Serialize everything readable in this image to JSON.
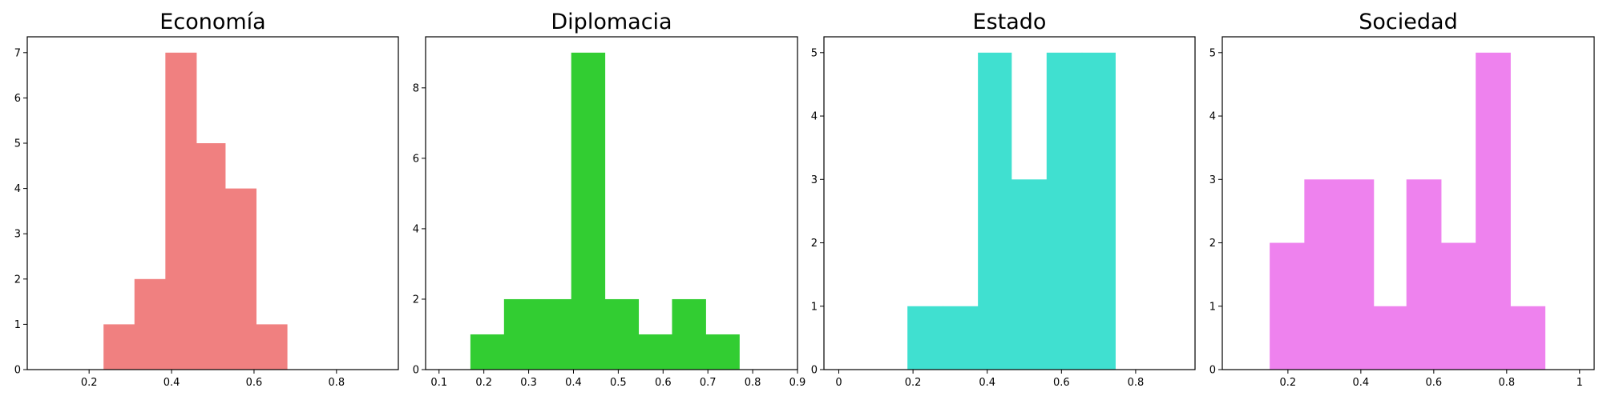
{
  "chart_data": [
    {
      "type": "bar",
      "title": "Economía",
      "color": "#f08080",
      "xlim": [
        0.05,
        0.95
      ],
      "ylim": [
        0,
        7.35
      ],
      "xticks": [
        0.2,
        0.4,
        0.6,
        0.8
      ],
      "yticks": [
        0,
        1,
        2,
        3,
        4,
        5,
        6,
        7
      ],
      "bins": [
        {
          "x0": 0.235,
          "x1": 0.31,
          "count": 1
        },
        {
          "x0": 0.31,
          "x1": 0.385,
          "count": 2
        },
        {
          "x0": 0.385,
          "x1": 0.46,
          "count": 7
        },
        {
          "x0": 0.46,
          "x1": 0.53,
          "count": 5
        },
        {
          "x0": 0.53,
          "x1": 0.605,
          "count": 4
        },
        {
          "x0": 0.605,
          "x1": 0.68,
          "count": 1
        }
      ],
      "xlabel": "",
      "ylabel": ""
    },
    {
      "type": "bar",
      "title": "Diplomacia",
      "color": "#32cd32",
      "xlim": [
        0.07,
        0.9
      ],
      "ylim": [
        0,
        9.45
      ],
      "xticks": [
        0.1,
        0.2,
        0.3,
        0.4,
        0.5,
        0.6,
        0.7,
        0.8,
        0.9
      ],
      "yticks": [
        0,
        2,
        4,
        6,
        8
      ],
      "bins": [
        {
          "x0": 0.17,
          "x1": 0.245,
          "count": 1
        },
        {
          "x0": 0.245,
          "x1": 0.32,
          "count": 2
        },
        {
          "x0": 0.32,
          "x1": 0.395,
          "count": 2
        },
        {
          "x0": 0.395,
          "x1": 0.47,
          "count": 9
        },
        {
          "x0": 0.47,
          "x1": 0.545,
          "count": 2
        },
        {
          "x0": 0.545,
          "x1": 0.62,
          "count": 1
        },
        {
          "x0": 0.62,
          "x1": 0.695,
          "count": 2
        },
        {
          "x0": 0.695,
          "x1": 0.77,
          "count": 1
        }
      ],
      "xlabel": "",
      "ylabel": ""
    },
    {
      "type": "bar",
      "title": "Estado",
      "color": "#40e0d0",
      "xlim": [
        -0.04,
        0.96
      ],
      "ylim": [
        0,
        5.25
      ],
      "xticks": [
        0.0,
        0.2,
        0.4,
        0.6,
        0.8
      ],
      "yticks": [
        0,
        1,
        2,
        3,
        4,
        5
      ],
      "bins": [
        {
          "x0": 0.185,
          "x1": 0.28,
          "count": 1
        },
        {
          "x0": 0.28,
          "x1": 0.375,
          "count": 1
        },
        {
          "x0": 0.375,
          "x1": 0.465,
          "count": 5
        },
        {
          "x0": 0.465,
          "x1": 0.56,
          "count": 3
        },
        {
          "x0": 0.56,
          "x1": 0.655,
          "count": 5
        },
        {
          "x0": 0.655,
          "x1": 0.745,
          "count": 5
        }
      ],
      "xlabel": "",
      "ylabel": ""
    },
    {
      "type": "bar",
      "title": "Sociedad",
      "color": "#ee82ee",
      "xlim": [
        0.02,
        1.04
      ],
      "ylim": [
        0,
        5.25
      ],
      "xticks": [
        0.2,
        0.4,
        0.6,
        0.8,
        1.0
      ],
      "yticks": [
        0,
        1,
        2,
        3,
        4,
        5
      ],
      "bins": [
        {
          "x0": 0.15,
          "x1": 0.245,
          "count": 2
        },
        {
          "x0": 0.245,
          "x1": 0.34,
          "count": 3
        },
        {
          "x0": 0.34,
          "x1": 0.435,
          "count": 3
        },
        {
          "x0": 0.435,
          "x1": 0.525,
          "count": 1
        },
        {
          "x0": 0.525,
          "x1": 0.62,
          "count": 3
        },
        {
          "x0": 0.62,
          "x1": 0.715,
          "count": 2
        },
        {
          "x0": 0.715,
          "x1": 0.81,
          "count": 5
        },
        {
          "x0": 0.81,
          "x1": 0.905,
          "count": 1
        }
      ],
      "xlabel": "",
      "ylabel": ""
    }
  ]
}
